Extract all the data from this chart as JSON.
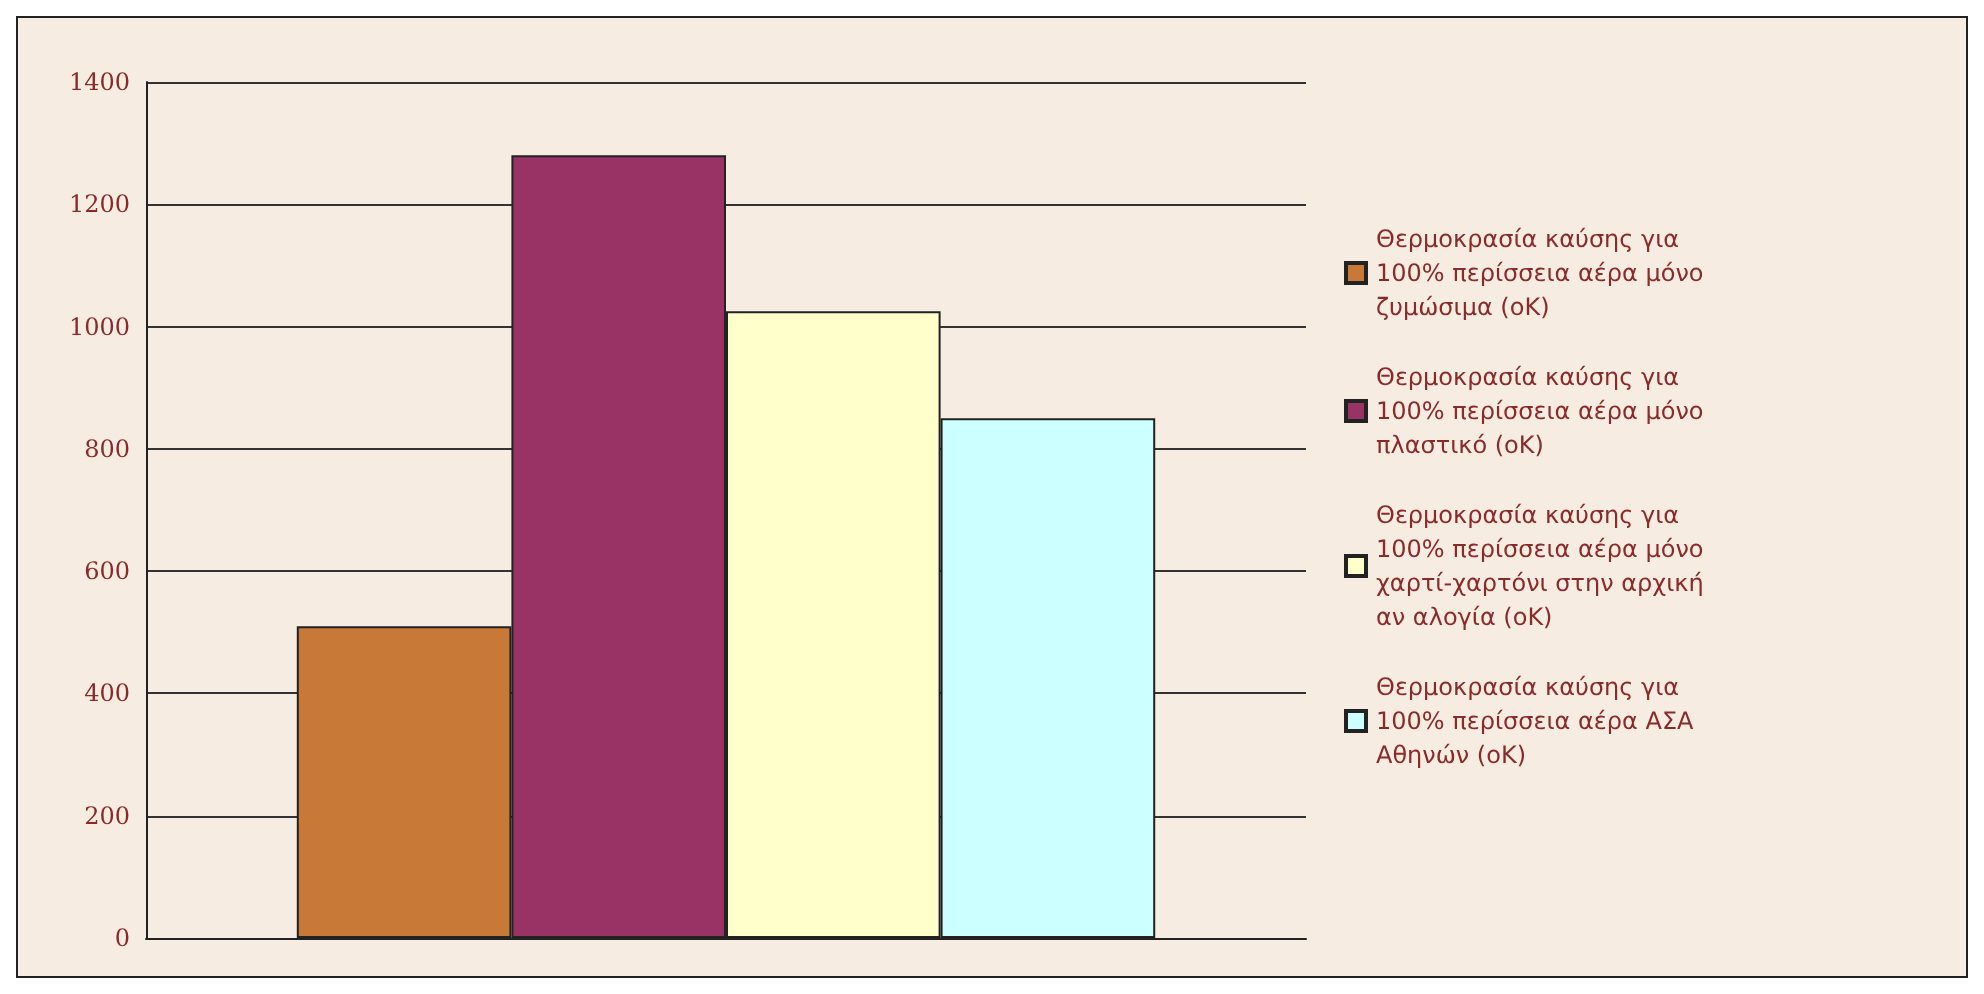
{
  "chart_data": {
    "type": "bar",
    "categories": [
      null
    ],
    "series": [
      {
        "name": "Θερμοκρασία καύσης για 100% περίσσεια αέρα μόνο ζυμώσιμα (oK)",
        "color": "#c87937",
        "values": [
          510
        ]
      },
      {
        "name": "Θερμοκρασία καύσης για 100% περίσσεια αέρα μόνο πλαστικό (oK)",
        "color": "#993366",
        "values": [
          1280
        ]
      },
      {
        "name": "Θερμοκρασία καύσης για 100% περίσσεια αέρα μόνο χαρτί-χαρτόνι στην αρχική αν αλογία (oK)",
        "color": "#ffffcc",
        "values": [
          1025
        ]
      },
      {
        "name": "Θερμοκρασία καύσης για 100% περίσσεια αέρα ΑΣΑ Αθηνών (oK)",
        "color": "#ccffff",
        "values": [
          850
        ]
      }
    ],
    "ylim": [
      0,
      1400
    ],
    "yticks": [
      0,
      200,
      400,
      600,
      800,
      1000,
      1200,
      1400
    ],
    "grid": "y",
    "legend": "right"
  }
}
